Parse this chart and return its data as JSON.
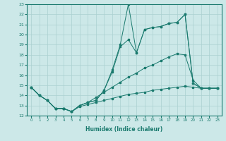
{
  "xlabel": "Humidex (Indice chaleur)",
  "bg_color": "#cce8e8",
  "grid_color": "#aad0d0",
  "line_color": "#1a7a6e",
  "xlim": [
    -0.5,
    23.5
  ],
  "ylim": [
    12,
    23
  ],
  "xticks": [
    0,
    1,
    2,
    3,
    4,
    5,
    6,
    7,
    8,
    9,
    10,
    11,
    12,
    13,
    14,
    15,
    16,
    17,
    18,
    19,
    20,
    21,
    22,
    23
  ],
  "yticks": [
    12,
    13,
    14,
    15,
    16,
    17,
    18,
    19,
    20,
    21,
    22,
    23
  ],
  "series": [
    {
      "x": [
        0,
        1,
        2,
        3,
        4,
        5,
        6,
        7,
        8,
        9,
        10,
        11,
        12,
        13,
        14,
        15,
        16,
        17,
        18,
        19,
        20,
        21,
        22,
        23
      ],
      "y": [
        14.8,
        14.0,
        13.5,
        12.7,
        12.7,
        12.4,
        13.0,
        13.3,
        13.5,
        14.5,
        16.5,
        19.0,
        23.0,
        18.2,
        20.5,
        20.7,
        20.8,
        21.1,
        21.2,
        22.0,
        15.2,
        14.7,
        14.7,
        14.7
      ]
    },
    {
      "x": [
        0,
        1,
        2,
        3,
        4,
        5,
        6,
        7,
        8,
        9,
        10,
        11,
        12,
        13,
        14,
        15,
        16,
        17,
        18,
        19,
        20,
        21,
        22,
        23
      ],
      "y": [
        14.8,
        14.0,
        13.5,
        12.7,
        12.7,
        12.4,
        13.0,
        13.3,
        13.5,
        14.5,
        16.3,
        18.8,
        19.5,
        18.2,
        20.5,
        20.7,
        20.8,
        21.1,
        21.2,
        22.0,
        15.2,
        14.7,
        14.7,
        14.7
      ]
    },
    {
      "x": [
        0,
        1,
        2,
        3,
        4,
        5,
        6,
        7,
        8,
        9,
        10,
        11,
        12,
        13,
        14,
        15,
        16,
        17,
        18,
        19,
        20,
        21,
        22,
        23
      ],
      "y": [
        14.8,
        14.0,
        13.5,
        12.7,
        12.7,
        12.4,
        13.0,
        13.3,
        13.8,
        14.3,
        14.8,
        15.3,
        15.8,
        16.2,
        16.7,
        17.0,
        17.4,
        17.8,
        18.1,
        18.0,
        15.5,
        14.7,
        14.7,
        14.7
      ]
    },
    {
      "x": [
        0,
        1,
        2,
        3,
        4,
        5,
        6,
        7,
        8,
        9,
        10,
        11,
        12,
        13,
        14,
        15,
        16,
        17,
        18,
        19,
        20,
        21,
        22,
        23
      ],
      "y": [
        14.8,
        14.0,
        13.5,
        12.7,
        12.7,
        12.4,
        12.9,
        13.1,
        13.3,
        13.5,
        13.7,
        13.9,
        14.1,
        14.2,
        14.3,
        14.5,
        14.6,
        14.7,
        14.8,
        14.9,
        14.8,
        14.7,
        14.7,
        14.7
      ]
    }
  ]
}
